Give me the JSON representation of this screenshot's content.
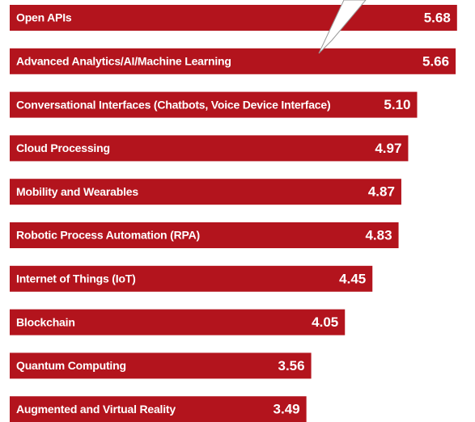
{
  "chart_data": {
    "type": "bar",
    "orientation": "horizontal",
    "categories": [
      "Open APIs",
      "Advanced Analytics/AI/Machine Learning",
      "Conversational Interfaces (Chatbots, Voice Device Interface)",
      "Cloud Processing",
      "Mobility and Wearables",
      "Robotic Process Automation (RPA)",
      "Internet of Things (IoT)",
      "Blockchain",
      "Quantum Computing",
      "Augmented and Virtual Reality"
    ],
    "values": [
      5.68,
      5.66,
      5.1,
      4.97,
      4.87,
      4.83,
      4.45,
      4.05,
      3.56,
      3.49
    ],
    "value_labels": [
      "5.68",
      "5.66",
      "5.10",
      "4.97",
      "4.87",
      "4.83",
      "4.45",
      "4.05",
      "3.56",
      "3.49"
    ],
    "color": "#b3141d"
  }
}
